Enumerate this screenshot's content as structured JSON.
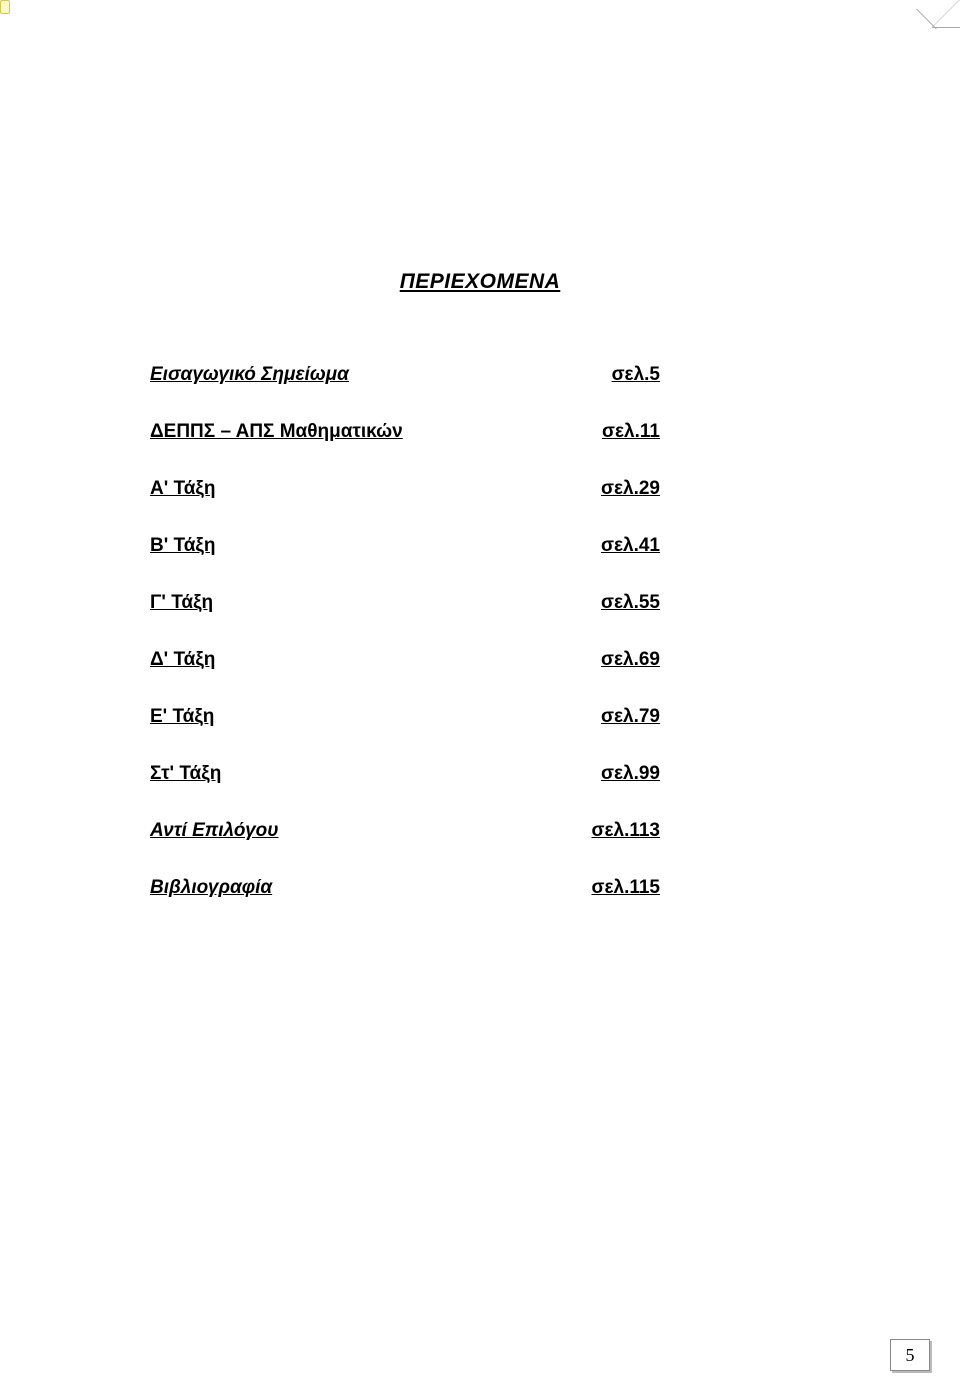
{
  "title": "ΠΕΡΙΕΧΟΜΕΝΑ",
  "toc": [
    {
      "label": "Εισαγωγικό Σημείωμα",
      "page": "σελ.5",
      "italic": true
    },
    {
      "label": "ΔΕΠΠΣ – ΑΠΣ Μαθηματικών",
      "page": "σελ.11",
      "italic": false
    },
    {
      "label": "Α' Τάξη",
      "page": "σελ.29",
      "italic": false
    },
    {
      "label": "Β' Τάξη",
      "page": "σελ.41",
      "italic": false
    },
    {
      "label": "Γ' Τάξη",
      "page": "σελ.55",
      "italic": false
    },
    {
      "label": "Δ' Τάξη",
      "page": "σελ.69",
      "italic": false
    },
    {
      "label": "Ε' Τάξη",
      "page": "σελ.79",
      "italic": false
    },
    {
      "label": "Στ' Τάξη",
      "page": "σελ.99",
      "italic": false
    },
    {
      "label": "Αντί Επιλόγου",
      "page": "σελ.113",
      "italic": true
    },
    {
      "label": "Βιβλιογραφία",
      "page": "σελ.115",
      "italic": true
    }
  ],
  "pageNumber": "5"
}
